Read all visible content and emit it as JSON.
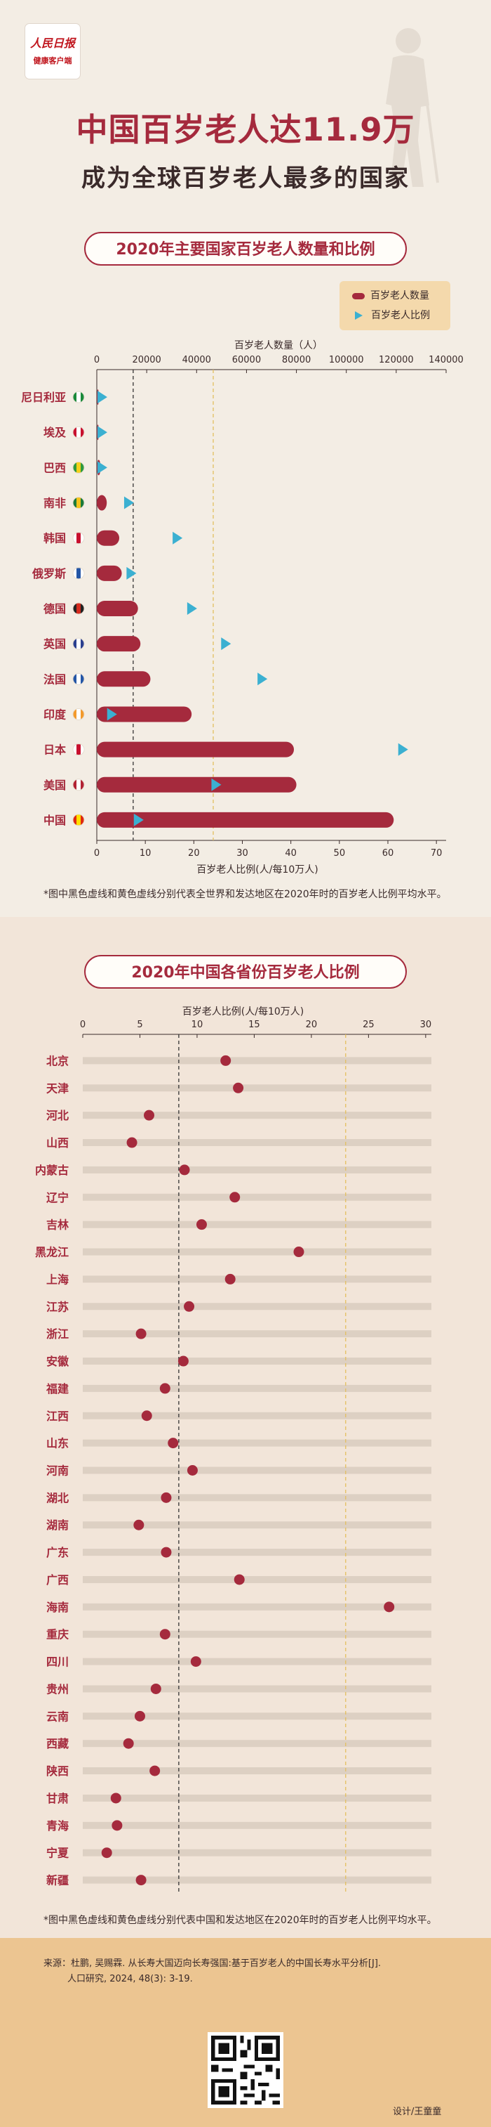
{
  "header": {
    "logo_line1": "人民日报",
    "logo_line2": "健康客户端",
    "title_line1": "中国百岁老人达11.9万",
    "title_line2": "成为全球百岁老人最多的国家"
  },
  "section1": {
    "pill_title": "2020年主要国家百岁老人数量和比例",
    "legend": {
      "count_label": "百岁老人数量",
      "ratio_label": "百岁老人比例"
    },
    "note": "*图中黑色虚线和黄色虚线分别代表全世界和发达地区在2020年时的百岁老人比例平均水平。"
  },
  "section2": {
    "pill_title": "2020年中国各省份百岁老人比例",
    "note": "*图中黑色虚线和黄色虚线分别代表中国和发达地区在2020年时的百岁老人比例平均水平。"
  },
  "footer": {
    "source_line1": "来源：杜鹏, 吴赐霖. 从长寿大国迈向长寿强国:基于百岁老人的中国长寿水平分析[J].",
    "source_line2": "人口研究, 2024, 48(3): 3-19.",
    "designer": "设计/王童童"
  },
  "colors": {
    "accent": "#a52a3d",
    "triangle": "#3bb0d1",
    "avg_black": "#333333",
    "avg_yellow": "#e3bf5e"
  },
  "chart_data": [
    {
      "type": "bar",
      "title": "2020年主要国家百岁老人数量和比例",
      "categories": [
        "尼日利亚",
        "埃及",
        "巴西",
        "南非",
        "韩国",
        "俄罗斯",
        "德国",
        "英国",
        "法国",
        "印度",
        "日本",
        "美国",
        "中国"
      ],
      "flags": [
        "nigeria-flag-icon",
        "egypt-flag-icon",
        "brazil-flag-icon",
        "south-africa-flag-icon",
        "korea-flag-icon",
        "russia-flag-icon",
        "germany-flag-icon",
        "uk-flag-icon",
        "france-flag-icon",
        "india-flag-icon",
        "japan-flag-icon",
        "usa-flag-icon",
        "china-flag-icon"
      ],
      "x_top_label": "百岁老人数量（人）",
      "x_top_ticks": [
        0,
        20000,
        40000,
        60000,
        80000,
        100000,
        120000,
        140000
      ],
      "x_top_lim": [
        0,
        140000
      ],
      "x_bottom_label": "百岁老人比例(人/每10万人)",
      "x_bottom_ticks": [
        0,
        10,
        20,
        30,
        40,
        50,
        60,
        70
      ],
      "x_bottom_lim": [
        0,
        72
      ],
      "series": [
        {
          "name": "百岁老人数量",
          "type": "bar",
          "values": [
            400,
            500,
            1500,
            4000,
            9000,
            10000,
            16500,
            17500,
            21500,
            38000,
            79000,
            80000,
            119000
          ]
        },
        {
          "name": "百岁老人比例",
          "type": "scatter",
          "values": [
            1,
            1,
            1,
            6.5,
            16.5,
            7,
            19.5,
            26.5,
            34,
            3,
            63,
            24.5,
            8.5
          ]
        }
      ],
      "reference_lines": [
        {
          "value": 7.5,
          "axis": "bottom",
          "style": "black-dashed"
        },
        {
          "value": 24,
          "axis": "bottom",
          "style": "yellow-dashed"
        }
      ]
    },
    {
      "type": "scatter",
      "title": "2020年中国各省份百岁老人比例",
      "x_label": "百岁老人比例(人/每10万人)",
      "x_ticks": [
        0,
        5,
        10,
        15,
        20,
        25,
        30
      ],
      "xlim": [
        0,
        30.5
      ],
      "categories": [
        "北京",
        "天津",
        "河北",
        "山西",
        "内蒙古",
        "辽宁",
        "吉林",
        "黑龙江",
        "上海",
        "江苏",
        "浙江",
        "安徽",
        "福建",
        "江西",
        "山东",
        "河南",
        "湖北",
        "湖南",
        "广东",
        "广西",
        "海南",
        "重庆",
        "四川",
        "贵州",
        "云南",
        "西藏",
        "陕西",
        "甘肃",
        "青海",
        "宁夏",
        "新疆"
      ],
      "values": [
        12.5,
        13.6,
        5.8,
        4.3,
        8.9,
        13.3,
        10.4,
        18.9,
        12.9,
        9.3,
        5.1,
        8.8,
        7.2,
        5.6,
        7.9,
        9.6,
        7.3,
        4.9,
        7.3,
        13.7,
        26.8,
        7.2,
        9.9,
        6.4,
        5.0,
        4.0,
        6.3,
        2.9,
        3.0,
        2.1,
        5.1
      ],
      "reference_lines": [
        {
          "value": 8.4,
          "style": "black-dashed"
        },
        {
          "value": 23.0,
          "style": "yellow-dashed"
        }
      ]
    }
  ]
}
